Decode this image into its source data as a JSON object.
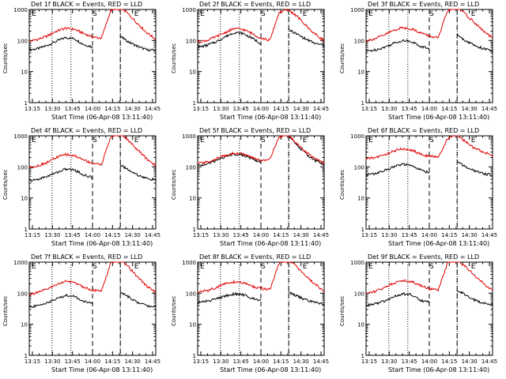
{
  "chart_data": [
    {
      "type": "line",
      "title": "Det 1f BLACK = Events, RED = LLD",
      "xlabel": "Start Time (06-Apr-08 13:11:40)",
      "ylabel": "Counts/sec",
      "xticks": [
        "13:15",
        "13:30",
        "13:45",
        "14:00",
        "14:15",
        "14:30",
        "14:45"
      ],
      "yticks": [
        "1",
        "10",
        "100",
        "1000"
      ],
      "ylim": [
        1,
        1000
      ],
      "yscale": "log",
      "markers": [
        "E",
        "S",
        "E"
      ],
      "series": [
        {
          "name": "Events",
          "color": "#000000",
          "values": [
            50,
            55,
            70,
            95,
            125,
            115,
            75,
            62,
            55,
            40,
            140,
            90,
            65,
            50,
            48
          ]
        },
        {
          "name": "LLD",
          "color": "#e00000",
          "values": [
            95,
            110,
            140,
            200,
            250,
            230,
            170,
            130,
            120,
            900,
            1300,
            700,
            350,
            180,
            110
          ]
        }
      ]
    },
    {
      "type": "line",
      "title": "Det 2f BLACK = Events, RED = LLD",
      "xlabel": "Start Time (06-Apr-08 13:11:40)",
      "ylabel": "Counts/sec",
      "xticks": [
        "13:15",
        "13:30",
        "13:45",
        "14:00",
        "14:15",
        "14:30",
        "14:45"
      ],
      "yticks": [
        "1",
        "10",
        "100",
        "1000"
      ],
      "ylim": [
        1,
        1000
      ],
      "yscale": "log",
      "markers": [
        "E",
        "S",
        "E"
      ],
      "series": [
        {
          "name": "Events",
          "color": "#000000",
          "values": [
            60,
            70,
            90,
            130,
            180,
            170,
            120,
            80,
            60,
            120,
            230,
            160,
            110,
            80,
            70
          ]
        },
        {
          "name": "LLD",
          "color": "#e00000",
          "values": [
            90,
            100,
            130,
            180,
            240,
            230,
            170,
            120,
            100,
            800,
            1000,
            600,
            300,
            160,
            100
          ]
        }
      ]
    },
    {
      "type": "line",
      "title": "Det 3f BLACK = Events, RED = LLD",
      "xlabel": "Start Time (06-Apr-08 13:11:40)",
      "ylabel": "Counts/sec",
      "xticks": [
        "13:15",
        "13:30",
        "13:45",
        "14:00",
        "14:15",
        "14:30",
        "14:45"
      ],
      "yticks": [
        "1",
        "10",
        "100",
        "1000"
      ],
      "ylim": [
        1,
        1000
      ],
      "yscale": "log",
      "markers": [
        "E",
        "S",
        "E"
      ],
      "series": [
        {
          "name": "Events",
          "color": "#000000",
          "values": [
            45,
            50,
            60,
            80,
            100,
            95,
            65,
            55,
            50,
            40,
            150,
            100,
            70,
            55,
            45
          ]
        },
        {
          "name": "LLD",
          "color": "#e00000",
          "values": [
            100,
            115,
            150,
            210,
            260,
            240,
            180,
            140,
            120,
            900,
            1300,
            700,
            380,
            200,
            120
          ]
        }
      ]
    },
    {
      "type": "line",
      "title": "Det 4f BLACK = Events, RED = LLD",
      "xlabel": "Start Time (06-Apr-08 13:11:40)",
      "ylabel": "Counts/sec",
      "xticks": [
        "13:15",
        "13:30",
        "13:45",
        "14:00",
        "14:15",
        "14:30",
        "14:45"
      ],
      "yticks": [
        "1",
        "10",
        "100",
        "1000"
      ],
      "ylim": [
        1,
        1000
      ],
      "yscale": "log",
      "markers": [
        "E",
        "S",
        "E"
      ],
      "series": [
        {
          "name": "Events",
          "color": "#000000",
          "values": [
            35,
            40,
            50,
            65,
            85,
            80,
            55,
            45,
            40,
            35,
            120,
            80,
            55,
            42,
            38
          ]
        },
        {
          "name": "LLD",
          "color": "#e00000",
          "values": [
            95,
            110,
            140,
            200,
            250,
            230,
            170,
            130,
            120,
            900,
            1300,
            700,
            350,
            180,
            110
          ]
        }
      ]
    },
    {
      "type": "line",
      "title": "Det 5f BLACK = Events, RED = LLD",
      "xlabel": "Start Time (06-Apr-08 13:11:40)",
      "ylabel": "Counts/sec",
      "xticks": [
        "13:15",
        "13:30",
        "13:45",
        "14:00",
        "14:15",
        "14:30",
        "14:45"
      ],
      "yticks": [
        "1",
        "10",
        "100",
        "1000"
      ],
      "ylim": [
        1,
        1000
      ],
      "yscale": "log",
      "markers": [
        "E",
        "S",
        "E"
      ],
      "series": [
        {
          "name": "Events",
          "color": "#000000",
          "values": [
            110,
            120,
            160,
            210,
            260,
            240,
            180,
            140,
            160,
            850,
            1050,
            500,
            260,
            160,
            120
          ]
        },
        {
          "name": "LLD",
          "color": "#e00000",
          "values": [
            130,
            140,
            180,
            230,
            280,
            260,
            200,
            160,
            180,
            900,
            1100,
            550,
            300,
            180,
            130
          ]
        }
      ]
    },
    {
      "type": "line",
      "title": "Det 6f BLACK = Events, RED = LLD",
      "xlabel": "Start Time (06-Apr-08 13:11:40)",
      "ylabel": "Counts/sec",
      "xticks": [
        "13:15",
        "13:30",
        "13:45",
        "14:00",
        "14:15",
        "14:30",
        "14:45"
      ],
      "yticks": [
        "1",
        "10",
        "100",
        "1000"
      ],
      "ylim": [
        1,
        1000
      ],
      "yscale": "log",
      "markers": [
        "E",
        "S",
        "E"
      ],
      "series": [
        {
          "name": "Events",
          "color": "#000000",
          "values": [
            55,
            60,
            75,
            100,
            120,
            110,
            80,
            65,
            60,
            50,
            150,
            100,
            75,
            60,
            55
          ]
        },
        {
          "name": "LLD",
          "color": "#e00000",
          "values": [
            180,
            200,
            240,
            320,
            380,
            350,
            260,
            220,
            200,
            800,
            1100,
            650,
            400,
            300,
            230
          ]
        }
      ]
    },
    {
      "type": "line",
      "title": "Det 7f BLACK = Events, RED = LLD",
      "xlabel": "Start Time (06-Apr-08 13:11:40)",
      "ylabel": "Counts/sec",
      "xticks": [
        "13:15",
        "13:30",
        "13:45",
        "14:00",
        "14:15",
        "14:30",
        "14:45"
      ],
      "yticks": [
        "1",
        "10",
        "100",
        "1000"
      ],
      "ylim": [
        1,
        1000
      ],
      "yscale": "log",
      "markers": [
        "E",
        "S",
        "E"
      ],
      "series": [
        {
          "name": "Events",
          "color": "#000000",
          "values": [
            35,
            40,
            50,
            65,
            85,
            80,
            55,
            45,
            40,
            35,
            110,
            75,
            50,
            40,
            35
          ]
        },
        {
          "name": "LLD",
          "color": "#e00000",
          "values": [
            90,
            105,
            135,
            190,
            240,
            220,
            160,
            125,
            115,
            900,
            1300,
            700,
            330,
            170,
            105
          ]
        }
      ]
    },
    {
      "type": "line",
      "title": "Det 8f BLACK = Events, RED = LLD",
      "xlabel": "Start Time (06-Apr-08 13:11:40)",
      "ylabel": "Counts/sec",
      "xticks": [
        "13:15",
        "13:30",
        "13:45",
        "14:00",
        "14:15",
        "14:30",
        "14:45"
      ],
      "yticks": [
        "1",
        "10",
        "100",
        "1000"
      ],
      "ylim": [
        1,
        1000
      ],
      "yscale": "log",
      "markers": [
        "E",
        "S",
        "E"
      ],
      "series": [
        {
          "name": "Events",
          "color": "#000000",
          "values": [
            50,
            55,
            65,
            80,
            95,
            90,
            70,
            60,
            55,
            45,
            110,
            80,
            60,
            50,
            45
          ]
        },
        {
          "name": "LLD",
          "color": "#e00000",
          "values": [
            110,
            120,
            150,
            200,
            230,
            220,
            170,
            140,
            130,
            900,
            1200,
            700,
            350,
            190,
            120
          ]
        }
      ]
    },
    {
      "type": "line",
      "title": "Det 9f BLACK = Events, RED = LLD",
      "xlabel": "Start Time (06-Apr-08 13:11:40)",
      "ylabel": "Counts/sec",
      "xticks": [
        "13:15",
        "13:30",
        "13:45",
        "14:00",
        "14:15",
        "14:30",
        "14:45"
      ],
      "yticks": [
        "1",
        "10",
        "100",
        "1000"
      ],
      "ylim": [
        1,
        1000
      ],
      "yscale": "log",
      "markers": [
        "E",
        "S",
        "E"
      ],
      "series": [
        {
          "name": "Events",
          "color": "#000000",
          "values": [
            40,
            45,
            55,
            75,
            95,
            90,
            60,
            50,
            45,
            40,
            130,
            90,
            60,
            48,
            42
          ]
        },
        {
          "name": "LLD",
          "color": "#e00000",
          "values": [
            100,
            115,
            150,
            210,
            260,
            240,
            180,
            140,
            125,
            900,
            1300,
            700,
            380,
            200,
            125
          ]
        }
      ]
    }
  ]
}
